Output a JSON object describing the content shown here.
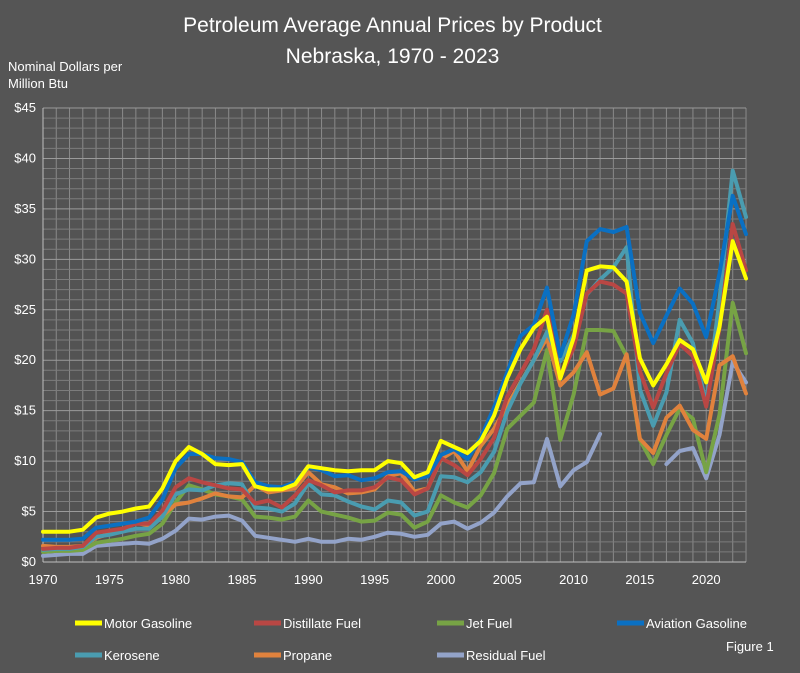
{
  "chart_data": {
    "type": "line",
    "title": "Petroleum Average Annual Prices by Product",
    "subtitle": "Nebraska, 1970 - 2023",
    "ylabel": "Nominal Dollars per\nMillion Btu",
    "xlabel": "",
    "figure_label": "Figure 1",
    "xlim": [
      1970,
      2023
    ],
    "ylim": [
      0,
      45
    ],
    "x_ticks": [
      1970,
      1975,
      1980,
      1985,
      1990,
      1995,
      2000,
      2005,
      2010,
      2015,
      2020
    ],
    "y_ticks": [
      0,
      5,
      10,
      15,
      20,
      25,
      30,
      35,
      40,
      45
    ],
    "y_tick_labels": [
      "$0",
      "$5",
      "$10",
      "$15",
      "$20",
      "$25",
      "$30",
      "$35",
      "$40",
      "$45"
    ],
    "grid": true,
    "legend_position": "bottom",
    "x": [
      1970,
      1971,
      1972,
      1973,
      1974,
      1975,
      1976,
      1977,
      1978,
      1979,
      1980,
      1981,
      1982,
      1983,
      1984,
      1985,
      1986,
      1987,
      1988,
      1989,
      1990,
      1991,
      1992,
      1993,
      1994,
      1995,
      1996,
      1997,
      1998,
      1999,
      2000,
      2001,
      2002,
      2003,
      2004,
      2005,
      2006,
      2007,
      2008,
      2009,
      2010,
      2011,
      2012,
      2013,
      2014,
      2015,
      2016,
      2017,
      2018,
      2019,
      2020,
      2021,
      2022,
      2023
    ],
    "series": [
      {
        "name": "Residual Fuel",
        "color": "#93a3c9",
        "values": [
          0.6,
          0.7,
          0.8,
          0.8,
          1.6,
          1.7,
          1.8,
          1.9,
          1.8,
          2.3,
          3.1,
          4.3,
          4.2,
          4.5,
          4.6,
          4.1,
          2.6,
          2.4,
          2.2,
          2.0,
          2.3,
          2.0,
          2.0,
          2.3,
          2.2,
          2.5,
          2.9,
          2.8,
          2.5,
          2.7,
          3.8,
          4.0,
          3.3,
          3.9,
          4.9,
          6.5,
          7.8,
          7.9,
          12.2,
          7.5,
          9.1,
          9.9,
          12.7,
          null,
          null,
          null,
          null,
          9.7,
          11.0,
          11.3,
          8.3,
          12.6,
          19.8,
          17.8
        ]
      },
      {
        "name": "Jet Fuel",
        "color": "#77a345",
        "values": [
          1.0,
          1.1,
          1.1,
          1.2,
          1.9,
          2.1,
          2.3,
          2.6,
          2.8,
          3.8,
          5.9,
          7.6,
          7.2,
          6.7,
          6.5,
          6.2,
          4.5,
          4.4,
          4.2,
          4.5,
          6.1,
          5.0,
          4.7,
          4.4,
          4.0,
          4.1,
          4.9,
          4.7,
          3.4,
          4.0,
          6.6,
          5.9,
          5.4,
          6.6,
          8.8,
          13.2,
          14.5,
          15.8,
          21.0,
          12.1,
          16.6,
          23.0,
          23.0,
          22.9,
          20.4,
          12.1,
          9.7,
          12.6,
          15.2,
          14.2,
          8.9,
          14.6,
          25.7,
          20.7
        ]
      },
      {
        "name": "Propane",
        "color": "#e0823d",
        "values": [
          1.6,
          1.5,
          1.5,
          1.6,
          2.4,
          2.8,
          3.2,
          3.9,
          3.6,
          4.6,
          5.7,
          5.9,
          6.3,
          6.8,
          6.5,
          6.4,
          7.6,
          6.9,
          7.1,
          7.3,
          8.9,
          7.7,
          7.4,
          6.8,
          6.9,
          7.2,
          8.5,
          8.8,
          7.0,
          7.3,
          10.2,
          11.0,
          9.0,
          11.5,
          13.2,
          15.5,
          17.8,
          20.0,
          22.2,
          17.5,
          18.8,
          20.8,
          16.6,
          17.2,
          20.6,
          12.2,
          10.8,
          14.3,
          15.5,
          13.1,
          12.2,
          19.5,
          20.4,
          16.7
        ]
      },
      {
        "name": "Kerosene",
        "color": "#4a9cb0",
        "values": [
          1.2,
          1.3,
          1.3,
          1.5,
          2.5,
          2.7,
          3.0,
          3.3,
          3.3,
          4.5,
          6.7,
          7.2,
          7.1,
          7.6,
          7.8,
          7.7,
          5.4,
          5.3,
          5.0,
          5.8,
          7.8,
          6.7,
          6.6,
          6.0,
          5.5,
          5.2,
          6.1,
          5.9,
          4.6,
          5.0,
          8.5,
          8.4,
          7.9,
          8.9,
          10.9,
          14.9,
          17.7,
          20.0,
          22.8,
          19.9,
          22.5,
          26.5,
          28.0,
          29.2,
          31.2,
          17.1,
          13.5,
          16.8,
          24.0,
          21.7,
          15.6,
          26.0,
          38.8,
          34.2
        ]
      },
      {
        "name": "Distillate Fuel",
        "color": "#b94744",
        "values": [
          1.3,
          1.4,
          1.4,
          1.6,
          2.9,
          3.1,
          3.3,
          3.8,
          3.8,
          5.1,
          7.4,
          8.3,
          7.9,
          7.6,
          7.3,
          7.2,
          5.8,
          6.1,
          5.4,
          6.6,
          8.1,
          7.6,
          6.9,
          7.1,
          7.1,
          7.4,
          8.4,
          8.1,
          6.7,
          7.3,
          10.3,
          9.6,
          8.6,
          10.2,
          12.3,
          16.4,
          18.7,
          21.1,
          25.0,
          18.3,
          21.2,
          26.6,
          27.8,
          27.5,
          26.6,
          18.9,
          15.3,
          18.7,
          21.6,
          20.4,
          15.4,
          23.2,
          33.5,
          28.9
        ]
      },
      {
        "name": "Aviation Gasoline",
        "color": "#0a70c3",
        "values": [
          2.2,
          2.2,
          2.2,
          2.3,
          3.4,
          3.6,
          3.8,
          4.0,
          4.4,
          6.2,
          9.3,
          10.7,
          10.7,
          10.3,
          10.2,
          9.9,
          7.9,
          7.5,
          7.4,
          7.9,
          9.4,
          9.1,
          8.5,
          8.6,
          8.1,
          8.3,
          8.9,
          9.0,
          8.2,
          8.5,
          10.6,
          11.2,
          10.2,
          12.3,
          15.3,
          18.8,
          22.4,
          23.5,
          27.2,
          20.4,
          24.5,
          31.8,
          33.0,
          32.7,
          33.2,
          24.7,
          21.7,
          24.4,
          27.1,
          25.6,
          22.3,
          28.6,
          36.3,
          32.5
        ]
      },
      {
        "name": "Motor Gasoline",
        "color": "#ffff00",
        "values": [
          3.0,
          3.0,
          3.0,
          3.2,
          4.4,
          4.8,
          5.0,
          5.3,
          5.5,
          7.3,
          10.0,
          11.4,
          10.7,
          9.7,
          9.6,
          9.7,
          7.5,
          7.2,
          7.2,
          7.7,
          9.5,
          9.3,
          9.1,
          9.0,
          9.1,
          9.1,
          10.0,
          9.8,
          8.4,
          8.9,
          12.0,
          11.4,
          10.8,
          12.0,
          14.5,
          18.2,
          21.1,
          23.2,
          24.3,
          18.2,
          22.2,
          28.9,
          29.3,
          29.2,
          27.8,
          20.2,
          17.5,
          19.6,
          22.0,
          21.1,
          17.8,
          23.3,
          31.8,
          28.1
        ]
      }
    ],
    "legend_entries": [
      {
        "name": "Motor Gasoline",
        "color": "#ffff00"
      },
      {
        "name": "Distillate Fuel",
        "color": "#b94744"
      },
      {
        "name": "Jet Fuel",
        "color": "#77a345"
      },
      {
        "name": "Aviation Gasoline",
        "color": "#0a70c3"
      },
      {
        "name": "Kerosene",
        "color": "#4a9cb0"
      },
      {
        "name": "Propane",
        "color": "#e0823d"
      },
      {
        "name": "Residual Fuel",
        "color": "#93a3c9"
      }
    ]
  }
}
